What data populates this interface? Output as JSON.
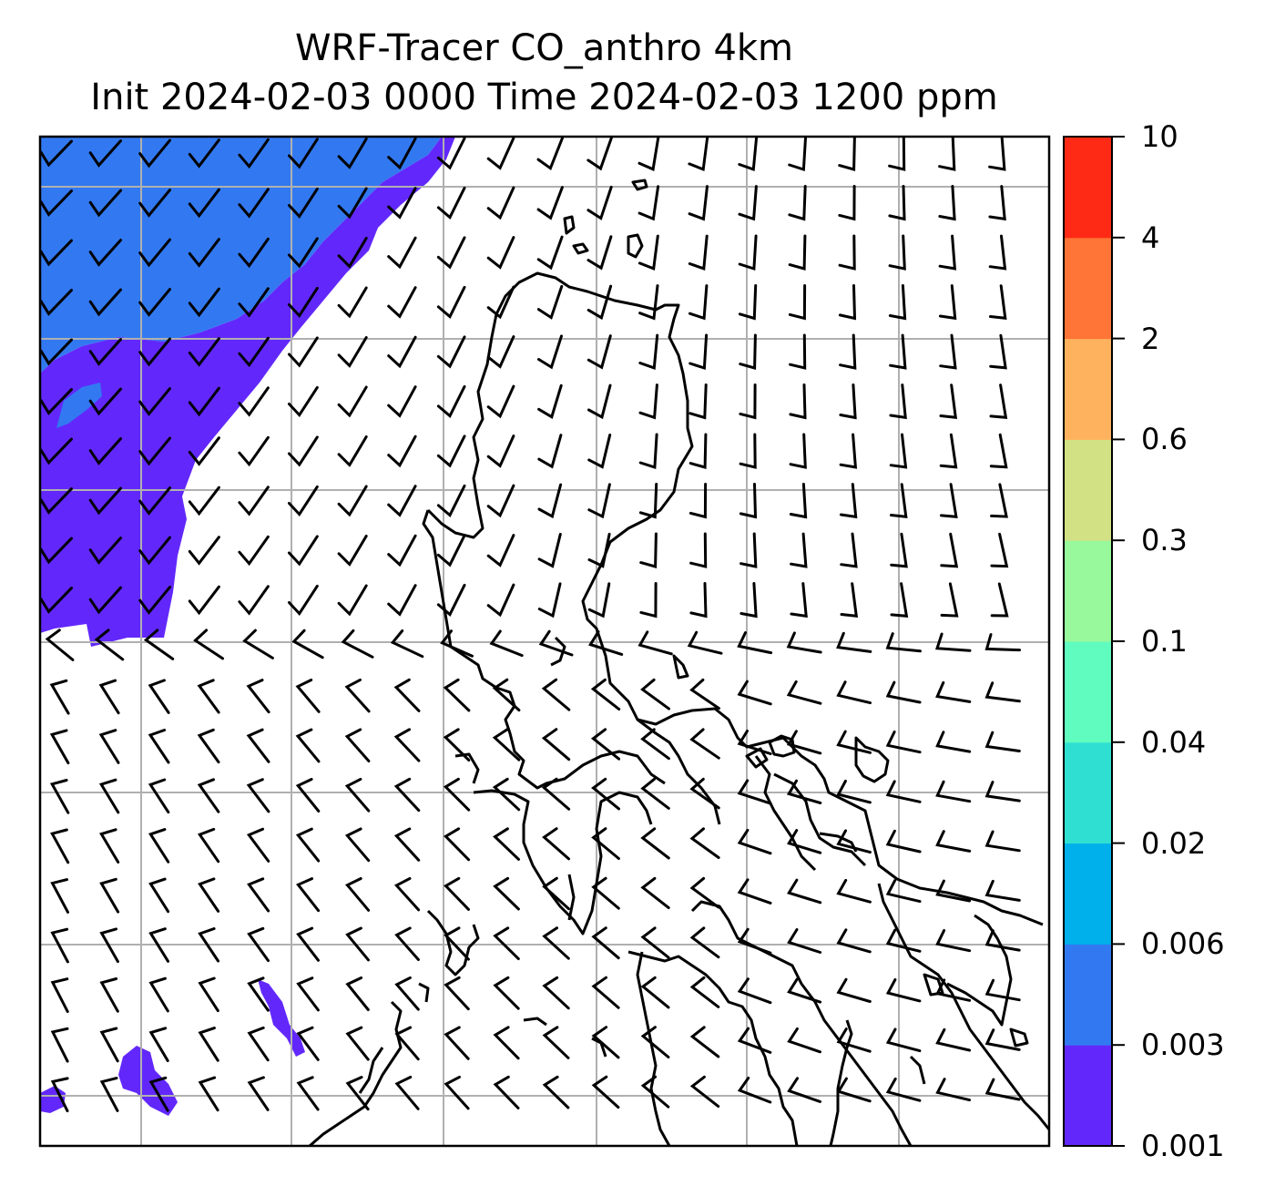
{
  "title": {
    "line1": "WRF-Tracer CO_anthro 4km",
    "line2": "Init 2024-02-03 0000 Time 2024-02-03 1200 ppm"
  },
  "colorbar": {
    "levels": [
      "0.001",
      "0.003",
      "0.006",
      "0.02",
      "0.04",
      "0.1",
      "0.3",
      "0.6",
      "2",
      "4",
      "10"
    ],
    "colors": [
      "#6228fb",
      "#3279f1",
      "#00b0ea",
      "#2fe0d2",
      "#60fbbf",
      "#97f99b",
      "#d2e184",
      "#ffb25e",
      "#ff7437",
      "#fe2a15"
    ]
  },
  "field": {
    "colors": {
      "blue_band": "#3279f1",
      "purple_band": "#6228fb",
      "coastline": "#000000",
      "gridline": "#b0b0b0",
      "barb": "#000000"
    }
  },
  "wind": {
    "description": "wind barbs",
    "direction_regime": [
      "southwest in northwest",
      "south-southwest in north",
      "northwest in south",
      "west-northwest in southeast"
    ]
  }
}
